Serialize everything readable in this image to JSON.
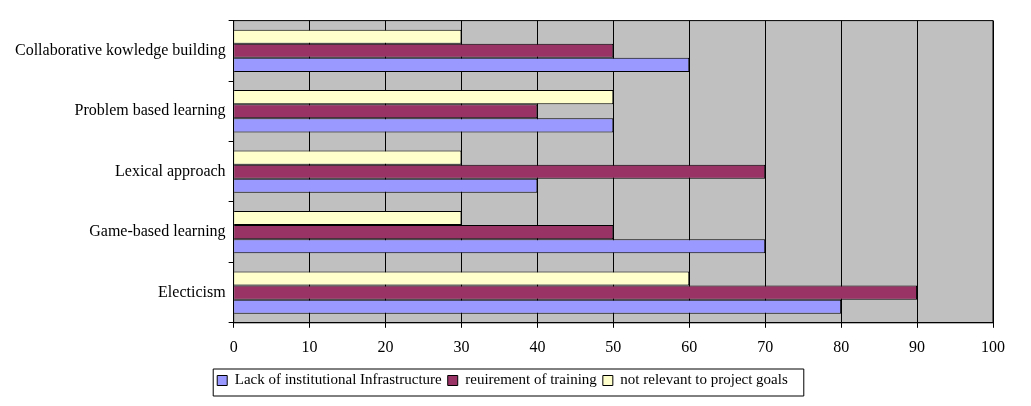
{
  "chart_data": {
    "type": "bar",
    "orientation": "horizontal",
    "categories": [
      "Collaborative kowledge building",
      "Problem based learning",
      "Lexical approach",
      "Game-based learning",
      "Electicism"
    ],
    "series": [
      {
        "name": "Lack of institutional Infrastructure",
        "color": "#9999ff",
        "values": [
          60,
          50,
          40,
          70,
          80
        ]
      },
      {
        "name": "reuirement of training",
        "color": "#993366",
        "values": [
          50,
          40,
          70,
          50,
          90
        ]
      },
      {
        "name": "not relevant to project goals",
        "color": "#ffffcc",
        "values": [
          30,
          50,
          30,
          30,
          60
        ]
      }
    ],
    "xlim": [
      0,
      100
    ],
    "xticks": [
      0,
      10,
      20,
      30,
      40,
      50,
      60,
      70,
      80,
      90,
      100
    ],
    "grid": "x",
    "legend": "bottom"
  }
}
